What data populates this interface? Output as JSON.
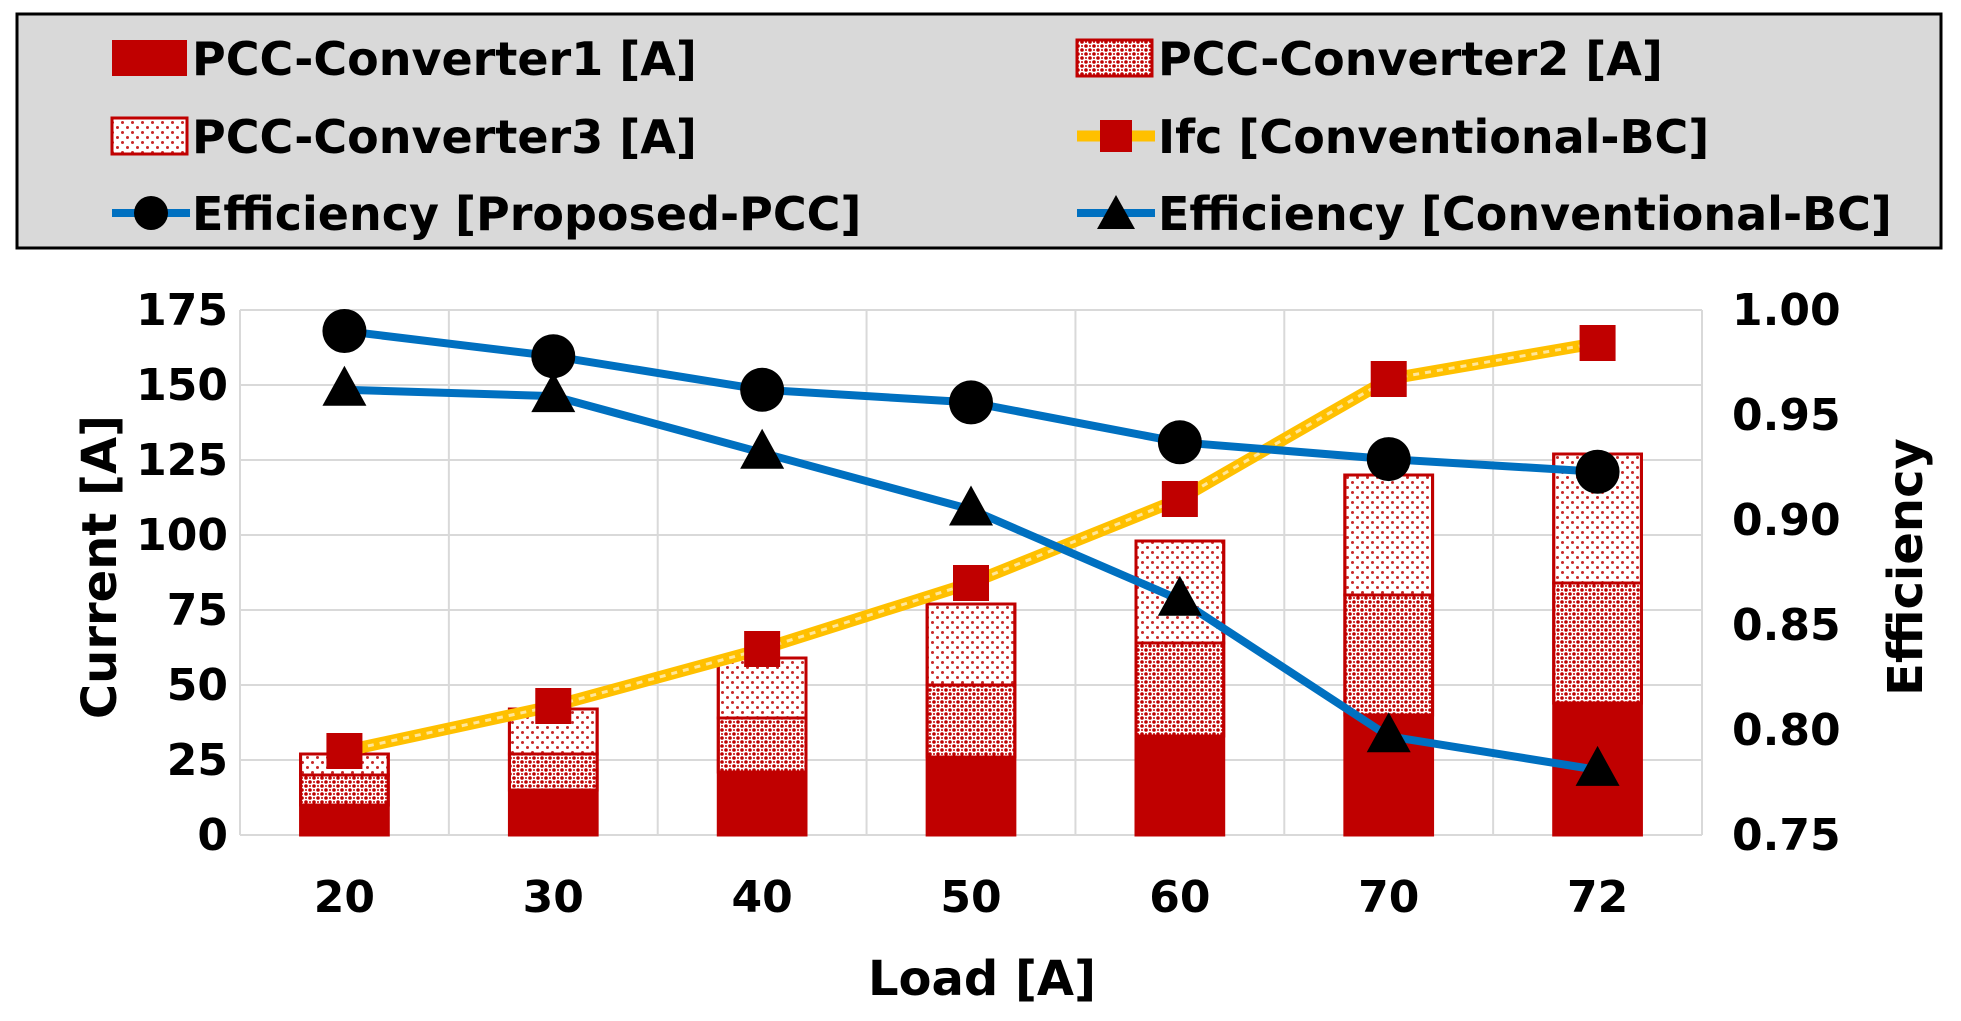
{
  "chart_data": {
    "type": "bar",
    "title": "",
    "xlabel": "Load [A]",
    "ylabel": "Current [A]",
    "y2label": "Efficiency",
    "categories": [
      "20",
      "30",
      "40",
      "50",
      "60",
      "70",
      "72"
    ],
    "ylim": [
      0,
      175
    ],
    "yticks": [
      "0",
      "25",
      "50",
      "75",
      "100",
      "125",
      "150",
      "175"
    ],
    "y2lim": [
      0.75,
      1.0
    ],
    "y2ticks": [
      "0.75",
      "0.80",
      "0.85",
      "0.90",
      "0.95",
      "1.00"
    ],
    "grid": true,
    "legend_position": "top",
    "series": [
      {
        "name": "PCC-Converter1 [A]",
        "type": "stacked-bar",
        "axis": "left",
        "color": "#C00000",
        "pattern": "solid",
        "values": [
          10,
          15,
          21,
          26,
          33,
          40,
          44
        ]
      },
      {
        "name": "PCC-Converter2 [A]",
        "type": "stacked-bar",
        "axis": "left",
        "color": "#C00000",
        "pattern": "dense-dots",
        "values": [
          10,
          12,
          18,
          24,
          31,
          40,
          40
        ]
      },
      {
        "name": "PCC-Converter3 [A]",
        "type": "stacked-bar",
        "axis": "left",
        "color": "#C00000",
        "pattern": "light-dots",
        "values": [
          7,
          15,
          20,
          27,
          34,
          40,
          43
        ]
      },
      {
        "name": "Ifc [Conventional-BC]",
        "type": "line",
        "axis": "left",
        "line_color": "#FFC000",
        "marker": "square",
        "marker_color": "#C00000",
        "values": [
          28,
          43,
          62,
          84,
          112,
          152,
          164
        ]
      },
      {
        "name": "Efficiency [Proposed-PCC]",
        "type": "line",
        "axis": "right",
        "line_color": "#0070C0",
        "marker": "circle",
        "marker_color": "#000000",
        "values": [
          0.99,
          0.978,
          0.962,
          0.956,
          0.937,
          0.929,
          0.923
        ]
      },
      {
        "name": "Efficiency [Conventional-BC]",
        "type": "line",
        "axis": "right",
        "line_color": "#0070C0",
        "marker": "triangle",
        "marker_color": "#000000",
        "values": [
          0.962,
          0.959,
          0.932,
          0.905,
          0.862,
          0.797,
          0.781
        ]
      }
    ]
  }
}
